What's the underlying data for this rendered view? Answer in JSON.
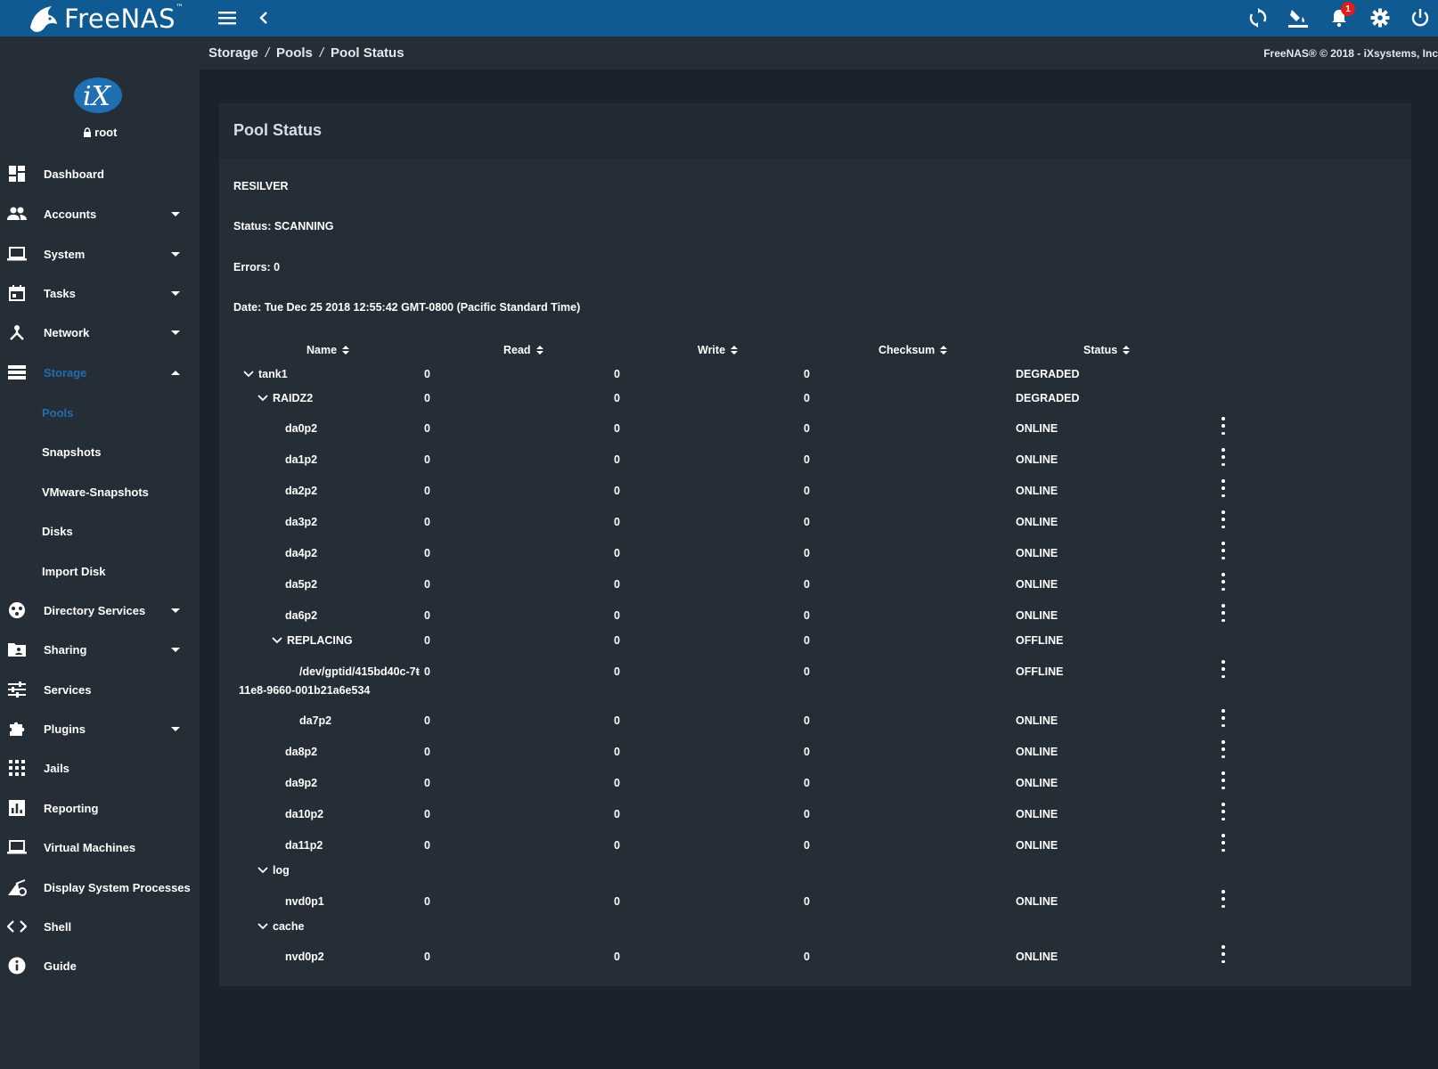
{
  "app": {
    "name": "FreeNAS",
    "trademark": "™"
  },
  "notifications": {
    "count": "1"
  },
  "user": {
    "name": "root"
  },
  "sidebar": {
    "items": [
      {
        "label": "Dashboard"
      },
      {
        "label": "Accounts"
      },
      {
        "label": "System"
      },
      {
        "label": "Tasks"
      },
      {
        "label": "Network"
      },
      {
        "label": "Storage"
      },
      {
        "label": "Directory Services"
      },
      {
        "label": "Sharing"
      },
      {
        "label": "Services"
      },
      {
        "label": "Plugins"
      },
      {
        "label": "Jails"
      },
      {
        "label": "Reporting"
      },
      {
        "label": "Virtual Machines"
      },
      {
        "label": "Display System Processes"
      },
      {
        "label": "Shell"
      },
      {
        "label": "Guide"
      }
    ],
    "storage_sub": [
      {
        "label": "Pools"
      },
      {
        "label": "Snapshots"
      },
      {
        "label": "VMware-Snapshots"
      },
      {
        "label": "Disks"
      },
      {
        "label": "Import Disk"
      }
    ]
  },
  "breadcrumb": {
    "items": [
      "Storage",
      "Pools",
      "Pool Status"
    ],
    "separator": "/"
  },
  "copyright": "FreeNAS® © 2018 - iXsystems, Inc",
  "card": {
    "title": "Pool Status",
    "scan_type": "RESILVER",
    "status": "Status: SCANNING",
    "errors": "Errors: 0",
    "date": "Date: Tue Dec 25 2018 12:55:42 GMT-0800 (Pacific Standard Time)"
  },
  "table": {
    "columns": [
      "Name",
      "Read",
      "Write",
      "Checksum",
      "Status"
    ],
    "rows": [
      {
        "name": "tank1",
        "read": "0",
        "write": "0",
        "checksum": "0",
        "status": "DEGRADED"
      },
      {
        "name": "RAIDZ2",
        "read": "0",
        "write": "0",
        "checksum": "0",
        "status": "DEGRADED"
      },
      {
        "name": "da0p2",
        "read": "0",
        "write": "0",
        "checksum": "0",
        "status": "ONLINE"
      },
      {
        "name": "da1p2",
        "read": "0",
        "write": "0",
        "checksum": "0",
        "status": "ONLINE"
      },
      {
        "name": "da2p2",
        "read": "0",
        "write": "0",
        "checksum": "0",
        "status": "ONLINE"
      },
      {
        "name": "da3p2",
        "read": "0",
        "write": "0",
        "checksum": "0",
        "status": "ONLINE"
      },
      {
        "name": "da4p2",
        "read": "0",
        "write": "0",
        "checksum": "0",
        "status": "ONLINE"
      },
      {
        "name": "da5p2",
        "read": "0",
        "write": "0",
        "checksum": "0",
        "status": "ONLINE"
      },
      {
        "name": "da6p2",
        "read": "0",
        "write": "0",
        "checksum": "0",
        "status": "ONLINE"
      },
      {
        "name": "REPLACING",
        "read": "0",
        "write": "0",
        "checksum": "0",
        "status": "OFFLINE"
      },
      {
        "name": "/dev/gptid/415bd40c-7ŧ",
        "name2": "11e8-9660-001b21a6e534",
        "read": "0",
        "write": "0",
        "checksum": "0",
        "status": "OFFLINE"
      },
      {
        "name": "da7p2",
        "read": "0",
        "write": "0",
        "checksum": "0",
        "status": "ONLINE"
      },
      {
        "name": "da8p2",
        "read": "0",
        "write": "0",
        "checksum": "0",
        "status": "ONLINE"
      },
      {
        "name": "da9p2",
        "read": "0",
        "write": "0",
        "checksum": "0",
        "status": "ONLINE"
      },
      {
        "name": "da10p2",
        "read": "0",
        "write": "0",
        "checksum": "0",
        "status": "ONLINE"
      },
      {
        "name": "da11p2",
        "read": "0",
        "write": "0",
        "checksum": "0",
        "status": "ONLINE"
      },
      {
        "name": "log"
      },
      {
        "name": "nvd0p1",
        "read": "0",
        "write": "0",
        "checksum": "0",
        "status": "ONLINE"
      },
      {
        "name": "cache"
      },
      {
        "name": "nvd0p2",
        "read": "0",
        "write": "0",
        "checksum": "0",
        "status": "ONLINE"
      }
    ]
  }
}
